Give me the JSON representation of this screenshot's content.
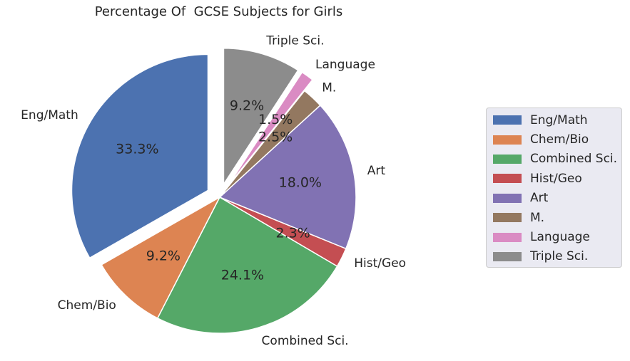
{
  "chart_data": {
    "type": "pie",
    "title": "Percentage Of  GCSE Subjects for Girls",
    "legend_position": "right",
    "slices": [
      {
        "label": "Eng/Math",
        "value": 33.3,
        "pct_label": "33.3%",
        "color": "#4c72b0",
        "explode": true
      },
      {
        "label": "Chem/Bio",
        "value": 9.2,
        "pct_label": "9.2%",
        "color": "#dd8452",
        "explode": false
      },
      {
        "label": "Combined Sci.",
        "value": 24.1,
        "pct_label": "24.1%",
        "color": "#55a868",
        "explode": false
      },
      {
        "label": "Hist/Geo",
        "value": 2.3,
        "pct_label": "2.3%",
        "color": "#c44e52",
        "explode": false
      },
      {
        "label": "Art",
        "value": 18.0,
        "pct_label": "18.0%",
        "color": "#8172b3",
        "explode": false
      },
      {
        "label": "M.",
        "value": 2.5,
        "pct_label": "2.5%",
        "color": "#937860",
        "explode": false
      },
      {
        "label": "Language",
        "value": 1.5,
        "pct_label": "1.5%",
        "color": "#da8bc3",
        "explode": true
      },
      {
        "label": "Triple Sci.",
        "value": 9.2,
        "pct_label": "9.2%",
        "color": "#8c8c8c",
        "explode": true
      }
    ]
  }
}
